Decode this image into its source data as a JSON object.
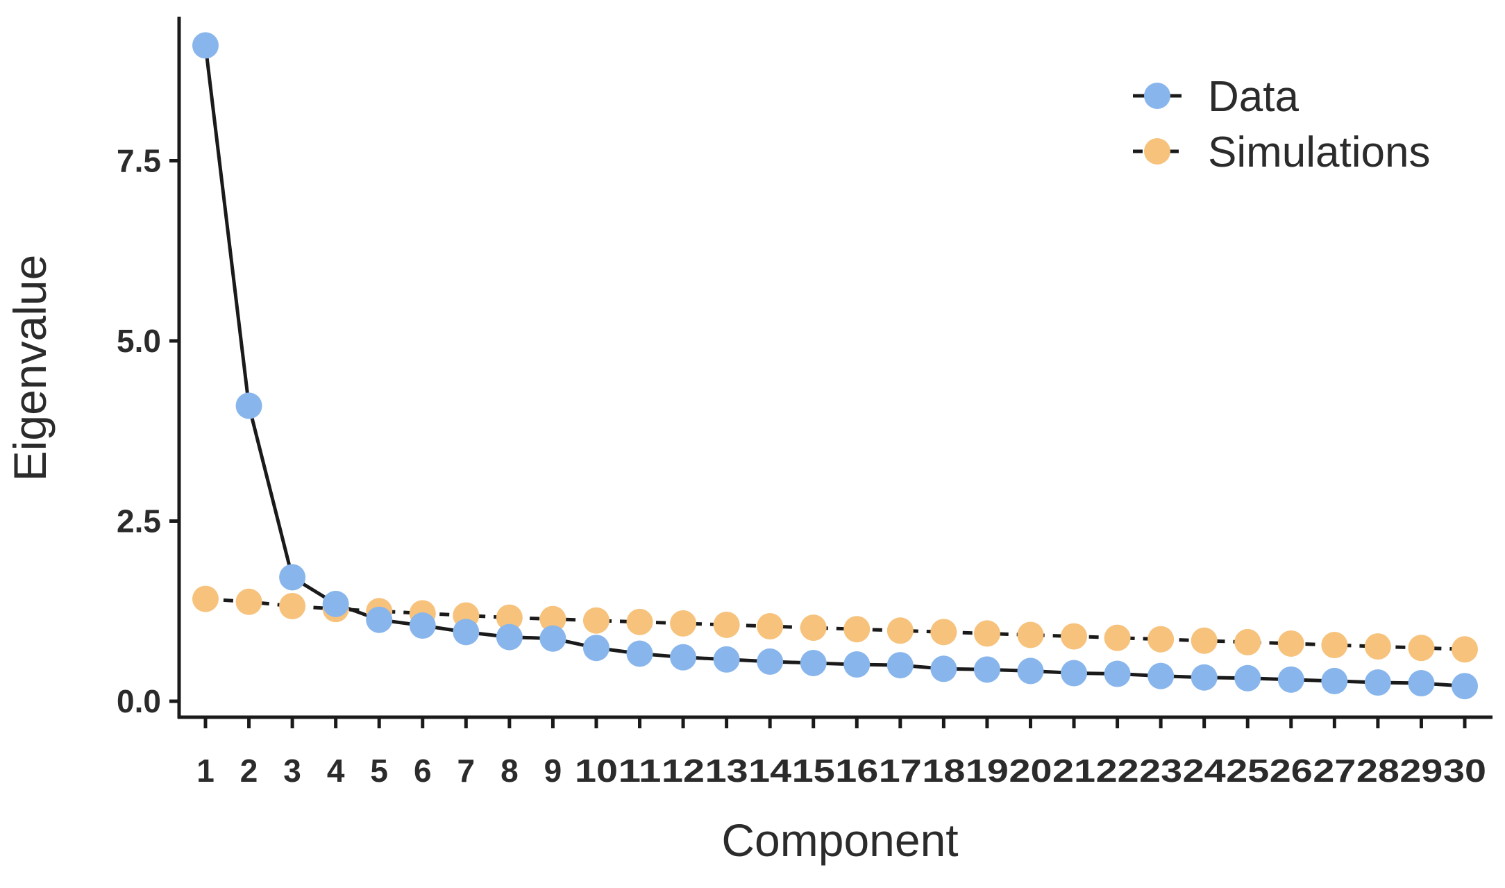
{
  "chart_data": {
    "type": "line",
    "xlabel": "Component",
    "ylabel": "Eigenvalue",
    "x": [
      1,
      2,
      3,
      4,
      5,
      6,
      7,
      8,
      9,
      10,
      11,
      12,
      13,
      14,
      15,
      16,
      17,
      18,
      19,
      20,
      21,
      22,
      23,
      24,
      25,
      26,
      27,
      28,
      29,
      30
    ],
    "x_tick_labels": [
      "1",
      "2",
      "3",
      "4",
      "5",
      "6",
      "7",
      "8",
      "9",
      "10",
      "11",
      "12",
      "13",
      "14",
      "15",
      "16",
      "17",
      "18",
      "19",
      "20",
      "21",
      "22",
      "23",
      "24",
      "25",
      "26",
      "27",
      "28",
      "29",
      "30"
    ],
    "y_ticks": [
      0.0,
      2.5,
      5.0,
      7.5
    ],
    "y_tick_labels": [
      "0.0",
      "2.5",
      "5.0",
      "7.5"
    ],
    "xlim": [
      1,
      30
    ],
    "ylim": [
      0,
      9.1
    ],
    "grid": false,
    "legend_position": "top-right",
    "series": [
      {
        "name": "Data",
        "line_style": "solid",
        "color": "#88b6ec",
        "values": [
          9.1,
          4.1,
          1.72,
          1.35,
          1.13,
          1.05,
          0.96,
          0.89,
          0.87,
          0.74,
          0.66,
          0.61,
          0.58,
          0.55,
          0.53,
          0.51,
          0.5,
          0.45,
          0.44,
          0.42,
          0.39,
          0.38,
          0.35,
          0.33,
          0.32,
          0.3,
          0.28,
          0.26,
          0.25,
          0.21
        ]
      },
      {
        "name": "Simulations",
        "line_style": "dashed",
        "color": "#f7c27c",
        "values": [
          1.42,
          1.38,
          1.32,
          1.28,
          1.25,
          1.22,
          1.19,
          1.16,
          1.14,
          1.12,
          1.1,
          1.08,
          1.06,
          1.04,
          1.02,
          1.0,
          0.98,
          0.96,
          0.94,
          0.92,
          0.9,
          0.88,
          0.86,
          0.84,
          0.82,
          0.8,
          0.78,
          0.76,
          0.74,
          0.72
        ]
      }
    ]
  }
}
